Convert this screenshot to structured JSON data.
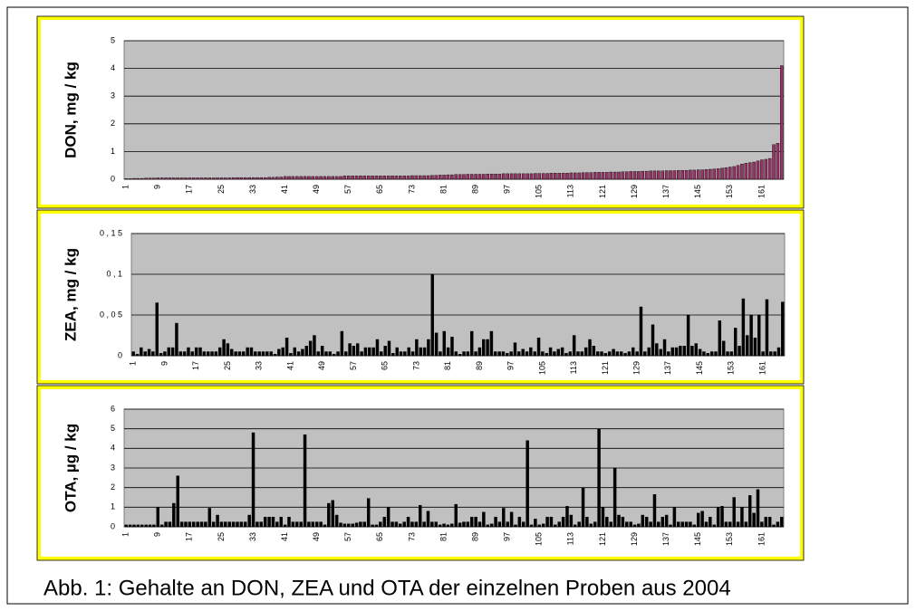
{
  "caption": "Abb. 1: Gehalte an DON, ZEA und OTA der einzelnen Proben aus 2004",
  "chart_data": [
    {
      "type": "bar",
      "ylabel": "DON, mg / kg",
      "color": "#993366",
      "grid": true,
      "ylim": [
        0,
        5
      ],
      "yticks": [
        0,
        1,
        2,
        3,
        4,
        5
      ],
      "categories": [
        "1",
        null,
        null,
        null,
        null,
        null,
        null,
        null,
        "9",
        null,
        null,
        null,
        null,
        null,
        null,
        null,
        "17",
        null,
        null,
        null,
        null,
        null,
        null,
        null,
        "25",
        null,
        null,
        null,
        null,
        null,
        null,
        null,
        "33",
        null,
        null,
        null,
        null,
        null,
        null,
        null,
        "41",
        null,
        null,
        null,
        null,
        null,
        null,
        null,
        "49",
        null,
        null,
        null,
        null,
        null,
        null,
        null,
        "57",
        null,
        null,
        null,
        null,
        null,
        null,
        null,
        "65",
        null,
        null,
        null,
        null,
        null,
        null,
        null,
        "73",
        null,
        null,
        null,
        null,
        null,
        null,
        null,
        "81",
        null,
        null,
        null,
        null,
        null,
        null,
        null,
        "89",
        null,
        null,
        null,
        null,
        null,
        null,
        null,
        "97",
        null,
        null,
        null,
        null,
        null,
        null,
        null,
        "105",
        null,
        null,
        null,
        null,
        null,
        null,
        null,
        "113",
        null,
        null,
        null,
        null,
        null,
        null,
        null,
        "121",
        null,
        null,
        null,
        null,
        null,
        null,
        null,
        "129",
        null,
        null,
        null,
        null,
        null,
        null,
        null,
        "137",
        null,
        null,
        null,
        null,
        null,
        null,
        null,
        "145",
        null,
        null,
        null,
        null,
        null,
        null,
        null,
        "153",
        null,
        null,
        null,
        null,
        null,
        null,
        null,
        "161",
        null,
        null,
        null,
        null,
        null
      ],
      "values": [
        0.02,
        0.02,
        0.03,
        0.03,
        0.03,
        0.04,
        0.04,
        0.04,
        0.05,
        0.05,
        0.05,
        0.05,
        0.05,
        0.05,
        0.05,
        0.05,
        0.05,
        0.05,
        0.05,
        0.05,
        0.05,
        0.05,
        0.05,
        0.05,
        0.05,
        0.05,
        0.05,
        0.06,
        0.06,
        0.06,
        0.06,
        0.06,
        0.06,
        0.06,
        0.06,
        0.06,
        0.07,
        0.07,
        0.08,
        0.08,
        0.1,
        0.1,
        0.1,
        0.1,
        0.1,
        0.1,
        0.1,
        0.1,
        0.1,
        0.1,
        0.1,
        0.1,
        0.1,
        0.1,
        0.1,
        0.12,
        0.12,
        0.12,
        0.12,
        0.12,
        0.12,
        0.12,
        0.12,
        0.12,
        0.12,
        0.12,
        0.12,
        0.12,
        0.12,
        0.12,
        0.12,
        0.12,
        0.13,
        0.13,
        0.13,
        0.13,
        0.13,
        0.14,
        0.14,
        0.15,
        0.15,
        0.16,
        0.16,
        0.17,
        0.17,
        0.17,
        0.18,
        0.18,
        0.18,
        0.18,
        0.18,
        0.19,
        0.19,
        0.19,
        0.19,
        0.2,
        0.2,
        0.2,
        0.2,
        0.2,
        0.2,
        0.2,
        0.2,
        0.21,
        0.21,
        0.21,
        0.21,
        0.22,
        0.22,
        0.22,
        0.22,
        0.22,
        0.23,
        0.23,
        0.23,
        0.24,
        0.24,
        0.24,
        0.25,
        0.25,
        0.25,
        0.25,
        0.26,
        0.26,
        0.26,
        0.27,
        0.27,
        0.28,
        0.28,
        0.28,
        0.29,
        0.29,
        0.3,
        0.3,
        0.3,
        0.3,
        0.31,
        0.31,
        0.31,
        0.32,
        0.32,
        0.32,
        0.33,
        0.33,
        0.34,
        0.34,
        0.35,
        0.36,
        0.37,
        0.38,
        0.4,
        0.42,
        0.44,
        0.46,
        0.5,
        0.55,
        0.58,
        0.6,
        0.62,
        0.66,
        0.7,
        0.72,
        0.75,
        1.25,
        1.3,
        4.1
      ]
    },
    {
      "type": "bar",
      "ylabel": "ZEA, mg / kg",
      "color": "#000000",
      "grid": true,
      "ylim": [
        0,
        0.15
      ],
      "yticks": [
        0,
        {
          "value": 0.05,
          "label": "0 , 0 5"
        },
        {
          "value": 0.1,
          "label": "0 , 1"
        },
        {
          "value": 0.15,
          "label": "0 , 1 5"
        }
      ],
      "categories": [
        "1",
        null,
        null,
        null,
        null,
        null,
        null,
        null,
        "9",
        null,
        null,
        null,
        null,
        null,
        null,
        null,
        "17",
        null,
        null,
        null,
        null,
        null,
        null,
        null,
        "25",
        null,
        null,
        null,
        null,
        null,
        null,
        null,
        "33",
        null,
        null,
        null,
        null,
        null,
        null,
        null,
        "41",
        null,
        null,
        null,
        null,
        null,
        null,
        null,
        "49",
        null,
        null,
        null,
        null,
        null,
        null,
        null,
        "57",
        null,
        null,
        null,
        null,
        null,
        null,
        null,
        "65",
        null,
        null,
        null,
        null,
        null,
        null,
        null,
        "73",
        null,
        null,
        null,
        null,
        null,
        null,
        null,
        "81",
        null,
        null,
        null,
        null,
        null,
        null,
        null,
        "89",
        null,
        null,
        null,
        null,
        null,
        null,
        null,
        "97",
        null,
        null,
        null,
        null,
        null,
        null,
        null,
        "105",
        null,
        null,
        null,
        null,
        null,
        null,
        null,
        "113",
        null,
        null,
        null,
        null,
        null,
        null,
        null,
        "121",
        null,
        null,
        null,
        null,
        null,
        null,
        null,
        "129",
        null,
        null,
        null,
        null,
        null,
        null,
        null,
        "137",
        null,
        null,
        null,
        null,
        null,
        null,
        null,
        "145",
        null,
        null,
        null,
        null,
        null,
        null,
        null,
        "153",
        null,
        null,
        null,
        null,
        null,
        null,
        null,
        "161",
        null,
        null,
        null,
        null,
        null
      ],
      "values": [
        0.005,
        0.002,
        0.01,
        0.005,
        0.008,
        0.005,
        0.065,
        0.003,
        0.005,
        0.01,
        0.01,
        0.04,
        0.005,
        0.005,
        0.01,
        0.005,
        0.01,
        0.01,
        0.005,
        0.005,
        0.005,
        0.005,
        0.01,
        0.02,
        0.015,
        0.008,
        0.005,
        0.005,
        0.005,
        0.01,
        0.01,
        0.005,
        0.005,
        0.005,
        0.005,
        0.005,
        0.002,
        0.008,
        0.01,
        0.022,
        0.003,
        0.01,
        0.005,
        0.008,
        0.012,
        0.018,
        0.025,
        0.005,
        0.012,
        0.005,
        0.005,
        0.002,
        0.005,
        0.03,
        0.005,
        0.015,
        0.012,
        0.015,
        0.005,
        0.01,
        0.01,
        0.01,
        0.02,
        0.005,
        0.012,
        0.018,
        0.003,
        0.01,
        0.005,
        0.005,
        0.01,
        0.005,
        0.02,
        0.01,
        0.01,
        0.02,
        0.1,
        0.028,
        0.005,
        0.03,
        0.01,
        0.023,
        0.005,
        0.002,
        0.005,
        0.005,
        0.03,
        0.005,
        0.01,
        0.02,
        0.02,
        0.03,
        0.005,
        0.005,
        0.005,
        0.003,
        0.005,
        0.016,
        0.005,
        0.008,
        0.005,
        0.01,
        0.005,
        0.022,
        0.005,
        0.003,
        0.01,
        0.005,
        0.008,
        0.01,
        0.003,
        0.005,
        0.025,
        0.005,
        0.005,
        0.01,
        0.02,
        0.012,
        0.005,
        0.005,
        0.003,
        0.005,
        0.008,
        0.005,
        0.005,
        0.003,
        0.005,
        0.01,
        0.005,
        0.06,
        0.005,
        0.01,
        0.038,
        0.015,
        0.008,
        0.02,
        0.005,
        0.01,
        0.01,
        0.012,
        0.012,
        0.05,
        0.012,
        0.015,
        0.008,
        0.005,
        0.003,
        0.005,
        0.005,
        0.043,
        0.018,
        0.005,
        0.005,
        0.034,
        0.012,
        0.07,
        0.025,
        0.05,
        0.022,
        0.05,
        0.005,
        0.069,
        0.005,
        0.005,
        0.01,
        0.066
      ]
    },
    {
      "type": "bar",
      "ylabel": "OTA, µg / kg",
      "color": "#000000",
      "grid": true,
      "ylim": [
        0,
        6
      ],
      "yticks": [
        0,
        1,
        2,
        3,
        4,
        5,
        6
      ],
      "categories": [
        "1",
        null,
        null,
        null,
        null,
        null,
        null,
        null,
        "9",
        null,
        null,
        null,
        null,
        null,
        null,
        null,
        "17",
        null,
        null,
        null,
        null,
        null,
        null,
        null,
        "25",
        null,
        null,
        null,
        null,
        null,
        null,
        null,
        "33",
        null,
        null,
        null,
        null,
        null,
        null,
        null,
        "41",
        null,
        null,
        null,
        null,
        null,
        null,
        null,
        "49",
        null,
        null,
        null,
        null,
        null,
        null,
        null,
        "57",
        null,
        null,
        null,
        null,
        null,
        null,
        null,
        "65",
        null,
        null,
        null,
        null,
        null,
        null,
        null,
        "73",
        null,
        null,
        null,
        null,
        null,
        null,
        null,
        "81",
        null,
        null,
        null,
        null,
        null,
        null,
        null,
        "89",
        null,
        null,
        null,
        null,
        null,
        null,
        null,
        "97",
        null,
        null,
        null,
        null,
        null,
        null,
        null,
        "105",
        null,
        null,
        null,
        null,
        null,
        null,
        null,
        "113",
        null,
        null,
        null,
        null,
        null,
        null,
        null,
        "121",
        null,
        null,
        null,
        null,
        null,
        null,
        null,
        "129",
        null,
        null,
        null,
        null,
        null,
        null,
        null,
        "137",
        null,
        null,
        null,
        null,
        null,
        null,
        null,
        "145",
        null,
        null,
        null,
        null,
        null,
        null,
        null,
        "153",
        null,
        null,
        null,
        null,
        null,
        null,
        null,
        "161",
        null,
        null,
        null,
        null,
        null
      ],
      "values": [
        0.1,
        0.1,
        0.1,
        0.1,
        0.1,
        0.1,
        0.1,
        0.1,
        1.0,
        0.1,
        0.25,
        0.25,
        1.2,
        2.6,
        0.25,
        0.25,
        0.25,
        0.25,
        0.25,
        0.25,
        0.25,
        0.95,
        0.25,
        0.6,
        0.25,
        0.25,
        0.25,
        0.25,
        0.25,
        0.25,
        0.25,
        0.6,
        4.8,
        0.25,
        0.25,
        0.5,
        0.5,
        0.5,
        0.25,
        0.5,
        0.1,
        0.5,
        0.25,
        0.25,
        0.25,
        4.7,
        0.25,
        0.25,
        0.25,
        0.25,
        0.1,
        1.2,
        1.35,
        0.6,
        0.2,
        0.15,
        0.15,
        0.15,
        0.2,
        0.25,
        0.25,
        1.45,
        0.1,
        0.1,
        0.25,
        0.5,
        1.0,
        0.25,
        0.25,
        0.15,
        0.25,
        0.5,
        0.25,
        0.25,
        1.1,
        0.25,
        0.8,
        0.25,
        0.25,
        0.1,
        0.15,
        0.1,
        0.15,
        1.15,
        0.2,
        0.25,
        0.25,
        0.5,
        0.5,
        0.25,
        0.75,
        0.1,
        0.15,
        0.5,
        0.25,
        0.95,
        0.25,
        0.75,
        0.1,
        0.5,
        0.25,
        4.4,
        0.1,
        0.4,
        0.1,
        0.15,
        0.5,
        0.5,
        0.1,
        0.25,
        0.5,
        1.05,
        0.6,
        0.1,
        0.25,
        2.0,
        0.5,
        0.15,
        0.25,
        5.0,
        1.0,
        0.5,
        0.25,
        3.0,
        0.6,
        0.5,
        0.25,
        0.25,
        0.1,
        0.15,
        0.6,
        0.5,
        0.25,
        1.65,
        0.25,
        0.5,
        0.6,
        0.1,
        1.0,
        0.25,
        0.25,
        0.25,
        0.25,
        0.1,
        0.7,
        0.8,
        0.25,
        0.5,
        0.1,
        1.0,
        1.05,
        0.25,
        0.25,
        1.5,
        0.25,
        1.0,
        0.25,
        1.6,
        0.7,
        1.9,
        0.25,
        0.5,
        0.5,
        0.1,
        0.25,
        0.5
      ]
    }
  ]
}
